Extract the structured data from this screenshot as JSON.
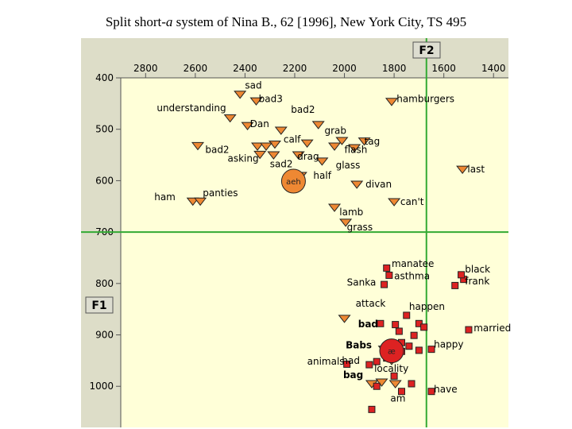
{
  "title_prefix": "Split short-",
  "title_italic": "a",
  "title_suffix": " system of Nina B., 62 [1996], New York City, TS 495",
  "chart_data": {
    "type": "scatter",
    "title": "Split short-a system of Nina B., 62 [1996], New York City, TS 495",
    "xlabel": "F2",
    "ylabel": "F1",
    "xlim": [
      2900,
      1340
    ],
    "ylim": [
      400,
      1080
    ],
    "x_ticks": [
      2800,
      2600,
      2400,
      2200,
      2000,
      1800,
      1600,
      1400
    ],
    "y_ticks": [
      400,
      500,
      600,
      700,
      800,
      900,
      1000
    ],
    "reference_lines": {
      "f2": 1670,
      "f1": 700
    },
    "colors": {
      "plot_bg": "#ffffd8",
      "axis_strip": "#ddddc8",
      "grid_line": "#33aa33",
      "tense": "#ee8833",
      "lax": "#dd2222"
    },
    "tense_points": [
      {
        "x": 2420,
        "y": 432
      },
      {
        "x": 2355,
        "y": 445
      },
      {
        "x": 2460,
        "y": 478
      },
      {
        "x": 2390,
        "y": 493
      },
      {
        "x": 2255,
        "y": 502
      },
      {
        "x": 2105,
        "y": 491
      },
      {
        "x": 2010,
        "y": 522
      },
      {
        "x": 1920,
        "y": 523
      },
      {
        "x": 2150,
        "y": 527
      },
      {
        "x": 2280,
        "y": 529
      },
      {
        "x": 2590,
        "y": 532
      },
      {
        "x": 2350,
        "y": 533
      },
      {
        "x": 2315,
        "y": 533
      },
      {
        "x": 2040,
        "y": 533
      },
      {
        "x": 1960,
        "y": 536
      },
      {
        "x": 2340,
        "y": 549
      },
      {
        "x": 2285,
        "y": 550
      },
      {
        "x": 2185,
        "y": 550
      },
      {
        "x": 2090,
        "y": 562
      },
      {
        "x": 1810,
        "y": 446
      },
      {
        "x": 1525,
        "y": 578
      },
      {
        "x": 2175,
        "y": 590
      },
      {
        "x": 1950,
        "y": 607
      },
      {
        "x": 2610,
        "y": 640
      },
      {
        "x": 2580,
        "y": 640
      },
      {
        "x": 2040,
        "y": 652
      },
      {
        "x": 1800,
        "y": 641
      },
      {
        "x": 1995,
        "y": 681
      },
      {
        "x": 2000,
        "y": 868
      },
      {
        "x": 1840,
        "y": 928
      },
      {
        "x": 1810,
        "y": 950
      },
      {
        "x": 1795,
        "y": 995
      },
      {
        "x": 1850,
        "y": 992
      },
      {
        "x": 1890,
        "y": 995
      }
    ],
    "tense_means": [
      {
        "label": "aeh",
        "x": 2205,
        "y": 601
      }
    ],
    "lax_points": [
      {
        "x": 1830,
        "y": 770
      },
      {
        "x": 1820,
        "y": 784
      },
      {
        "x": 1840,
        "y": 802
      },
      {
        "x": 1520,
        "y": 792
      },
      {
        "x": 1530,
        "y": 783
      },
      {
        "x": 1555,
        "y": 804
      },
      {
        "x": 1855,
        "y": 878
      },
      {
        "x": 1795,
        "y": 880
      },
      {
        "x": 1750,
        "y": 862
      },
      {
        "x": 1500,
        "y": 890
      },
      {
        "x": 1700,
        "y": 878
      },
      {
        "x": 1780,
        "y": 893
      },
      {
        "x": 1680,
        "y": 885
      },
      {
        "x": 1720,
        "y": 901
      },
      {
        "x": 1770,
        "y": 915
      },
      {
        "x": 1740,
        "y": 922
      },
      {
        "x": 1700,
        "y": 930
      },
      {
        "x": 1770,
        "y": 932
      },
      {
        "x": 1650,
        "y": 928
      },
      {
        "x": 1830,
        "y": 945
      },
      {
        "x": 1870,
        "y": 952
      },
      {
        "x": 1900,
        "y": 958
      },
      {
        "x": 1990,
        "y": 957
      },
      {
        "x": 1800,
        "y": 980
      },
      {
        "x": 1870,
        "y": 1000
      },
      {
        "x": 1770,
        "y": 1010
      },
      {
        "x": 1730,
        "y": 995
      },
      {
        "x": 1650,
        "y": 1010
      },
      {
        "x": 1890,
        "y": 1045
      }
    ],
    "lax_means": [
      {
        "label": "æ",
        "x": 1810,
        "y": 931
      }
    ],
    "labels": [
      {
        "text": "sad",
        "x": 2400,
        "y": 421,
        "bold": false
      },
      {
        "text": "bad3",
        "x": 2345,
        "y": 447,
        "bold": false
      },
      {
        "text": "understanding",
        "x": 2755,
        "y": 465,
        "bold": false
      },
      {
        "text": "bad2",
        "x": 2215,
        "y": 468,
        "bold": false
      },
      {
        "text": "hamburgers",
        "x": 1790,
        "y": 447,
        "bold": false
      },
      {
        "text": "Dan",
        "x": 2380,
        "y": 496,
        "bold": false
      },
      {
        "text": "grab",
        "x": 2080,
        "y": 509,
        "bold": false
      },
      {
        "text": "calf",
        "x": 2245,
        "y": 526,
        "bold": false
      },
      {
        "text": "tag",
        "x": 1920,
        "y": 530,
        "bold": false
      },
      {
        "text": "bad2",
        "x": 2560,
        "y": 546,
        "bold": false
      },
      {
        "text": "flash",
        "x": 2000,
        "y": 546,
        "bold": false
      },
      {
        "text": "asking",
        "x": 2470,
        "y": 563,
        "bold": false
      },
      {
        "text": "drag",
        "x": 2190,
        "y": 559,
        "bold": false
      },
      {
        "text": "sad2",
        "x": 2300,
        "y": 574,
        "bold": false
      },
      {
        "text": "glass",
        "x": 2035,
        "y": 576,
        "bold": false
      },
      {
        "text": "last",
        "x": 1505,
        "y": 584,
        "bold": false
      },
      {
        "text": "half",
        "x": 2125,
        "y": 596,
        "bold": false
      },
      {
        "text": "divan",
        "x": 1915,
        "y": 613,
        "bold": false
      },
      {
        "text": "panties",
        "x": 2570,
        "y": 630,
        "bold": false
      },
      {
        "text": "ham",
        "x": 2765,
        "y": 638,
        "bold": false
      },
      {
        "text": "can't",
        "x": 1775,
        "y": 647,
        "bold": false
      },
      {
        "text": "lamb",
        "x": 2020,
        "y": 667,
        "bold": false
      },
      {
        "text": "grass",
        "x": 1990,
        "y": 697,
        "bold": false
      },
      {
        "text": "manatee",
        "x": 1810,
        "y": 768,
        "bold": false
      },
      {
        "text": "asthma",
        "x": 1800,
        "y": 792,
        "bold": false
      },
      {
        "text": "black",
        "x": 1515,
        "y": 779,
        "bold": false
      },
      {
        "text": "frank",
        "x": 1515,
        "y": 802,
        "bold": false
      },
      {
        "text": "Sanka",
        "x": 1990,
        "y": 804,
        "bold": false
      },
      {
        "text": "attack",
        "x": 1955,
        "y": 845,
        "bold": false
      },
      {
        "text": "happen",
        "x": 1740,
        "y": 851,
        "bold": false
      },
      {
        "text": "bad",
        "x": 1945,
        "y": 885,
        "bold": true
      },
      {
        "text": "married",
        "x": 1480,
        "y": 893,
        "bold": false
      },
      {
        "text": "Babs",
        "x": 1995,
        "y": 926,
        "bold": true
      },
      {
        "text": "happy",
        "x": 1640,
        "y": 925,
        "bold": false
      },
      {
        "text": "animals",
        "x": 2150,
        "y": 958,
        "bold": false
      },
      {
        "text": "had",
        "x": 2010,
        "y": 956,
        "bold": false
      },
      {
        "text": "locality",
        "x": 1880,
        "y": 972,
        "bold": false
      },
      {
        "text": "bag",
        "x": 2005,
        "y": 984,
        "bold": true
      },
      {
        "text": "have",
        "x": 1640,
        "y": 1012,
        "bold": false
      },
      {
        "text": "am",
        "x": 1815,
        "y": 1030,
        "bold": false
      }
    ]
  }
}
